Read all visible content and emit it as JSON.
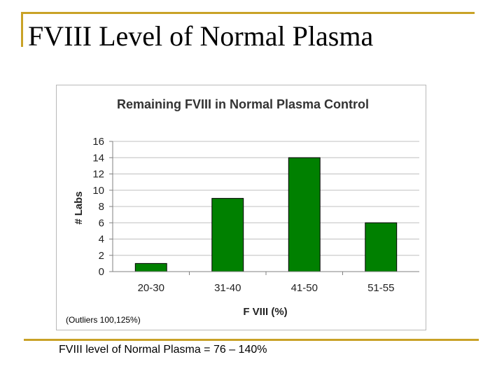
{
  "slide": {
    "title": "FVIII Level of Normal Plasma",
    "footnote": "FVIII level of Normal Plasma = 76 – 140%",
    "chart_note": "(Outliers 100,125%)"
  },
  "colors": {
    "accent": "#c9a227",
    "bar": "#008000",
    "bar_stroke": "#000000",
    "grid": "#c0c0c0"
  },
  "chart_data": {
    "type": "bar",
    "title": "Remaining FVIII in Normal Plasma Control",
    "xlabel": "F VIII (%)",
    "ylabel": "# Labs",
    "categories": [
      "20-30",
      "31-40",
      "41-50",
      "51-55"
    ],
    "values": [
      1,
      9,
      14,
      6
    ],
    "ylim": [
      0,
      16
    ],
    "yticks": [
      0,
      2,
      4,
      6,
      8,
      10,
      12,
      14,
      16
    ],
    "grid": true,
    "legend": "none"
  }
}
